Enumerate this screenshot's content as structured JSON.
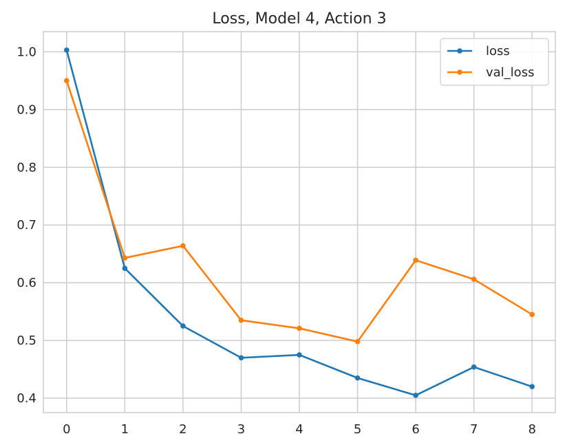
{
  "chart_data": {
    "type": "line",
    "title": "Loss, Model 4, Action 3",
    "xlabel": "",
    "ylabel": "",
    "x": [
      0,
      1,
      2,
      3,
      4,
      5,
      6,
      7,
      8
    ],
    "xlim": [
      -0.4,
      8.4
    ],
    "ylim": [
      0.375,
      1.035
    ],
    "xticks": [
      "0",
      "1",
      "2",
      "3",
      "4",
      "5",
      "6",
      "7",
      "8"
    ],
    "yticks": [
      "0.4",
      "0.5",
      "0.6",
      "0.7",
      "0.8",
      "0.9",
      "1.0"
    ],
    "grid": true,
    "legend_position": "top-right",
    "series": [
      {
        "name": "loss",
        "color": "#1f77b4",
        "values": [
          1.003,
          0.625,
          0.525,
          0.47,
          0.475,
          0.435,
          0.405,
          0.454,
          0.42
        ]
      },
      {
        "name": "val_loss",
        "color": "#ff7f0e",
        "values": [
          0.95,
          0.643,
          0.664,
          0.535,
          0.521,
          0.498,
          0.639,
          0.606,
          0.545
        ]
      }
    ]
  }
}
